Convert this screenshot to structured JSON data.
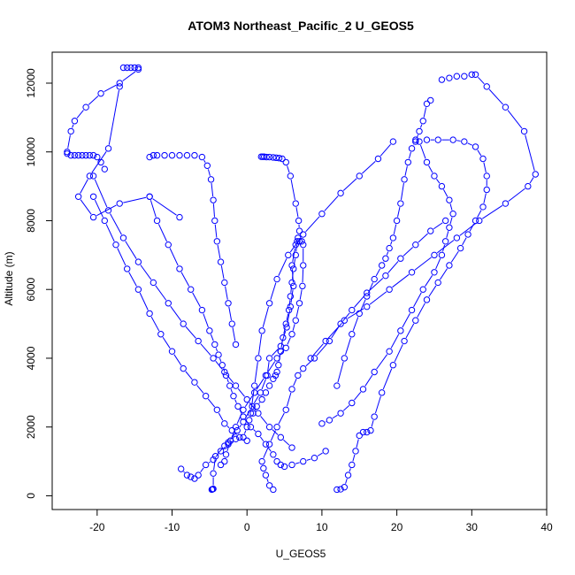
{
  "chart_data": {
    "type": "scatter",
    "title": "ATOM3 Northeast_Pacific_2 U_GEOS5",
    "xlabel": "U_GEOS5",
    "ylabel": "Altitude (m)",
    "xlim": [
      -26,
      40
    ],
    "ylim": [
      -400,
      12900
    ],
    "x_ticks": [
      -20,
      -10,
      0,
      10,
      20,
      30,
      40
    ],
    "y_ticks": [
      0,
      2000,
      4000,
      6000,
      8000,
      10000,
      12000
    ],
    "x_tick_labels": [
      "-20",
      "-10",
      "0",
      "10",
      "20",
      "30",
      "40"
    ],
    "y_tick_labels": [
      "0",
      "2000",
      "4000",
      "6000",
      "8000",
      "10000",
      "12000"
    ],
    "grid": false,
    "legend": "none",
    "series_color": "#0000ff",
    "series": [
      {
        "x": [
          -4.7,
          -4.6,
          -4.5,
          -4.5,
          -4.2,
          -3.0,
          -2.5,
          -1.3,
          -0.5,
          0.7,
          1.8,
          2.7,
          3.0,
          4.5,
          5.3,
          5.8,
          6.2,
          6.0,
          6.5,
          6.8,
          7.0,
          6.9,
          6.5,
          5.8,
          5.2,
          4.7,
          4.3,
          3.9,
          3.5,
          3.0,
          2.6,
          2.3,
          2.1,
          1.9
        ],
        "y": [
          180,
          190,
          200,
          650,
          1150,
          1450,
          1550,
          1900,
          2150,
          2600,
          3000,
          3500,
          4000,
          4350,
          4900,
          5500,
          6100,
          6700,
          7300,
          7500,
          7700,
          8000,
          8500,
          9300,
          9700,
          9800,
          9820,
          9830,
          9840,
          9850,
          9850,
          9860,
          9860,
          9860
        ]
      },
      {
        "x": [
          3.5,
          3.0,
          2.5,
          2.2,
          2.0,
          3.0,
          4.0,
          5.2,
          6.0,
          6.8,
          7.5,
          9.0,
          11.0,
          12.5,
          14.0,
          16.0,
          18.5,
          20.5,
          22.5,
          24.5,
          26.5
        ],
        "y": [
          180,
          300,
          600,
          800,
          1000,
          1500,
          2000,
          2500,
          3100,
          3500,
          3700,
          4000,
          4500,
          5000,
          5400,
          5900,
          6400,
          6900,
          7300,
          7700,
          8000
        ]
      },
      {
        "x": [
          12.0,
          12.5,
          13.0,
          13.5,
          14.0,
          14.5,
          15.0,
          15.5,
          16.0,
          16.5,
          17.0,
          18.0,
          19.5,
          21.0,
          22.5,
          24.0,
          25.5,
          27.0,
          28.5,
          29.5,
          30.5,
          31.5,
          32.0,
          32.0,
          31.5,
          30.5,
          29.0,
          27.5,
          25.5,
          24.0
        ],
        "y": [
          180,
          190,
          250,
          600,
          900,
          1300,
          1750,
          1850,
          1850,
          1900,
          2300,
          3000,
          3800,
          4500,
          5100,
          5700,
          6200,
          6700,
          7200,
          7600,
          8000,
          8400,
          8900,
          9300,
          9800,
          10150,
          10300,
          10350,
          10350,
          10350
        ]
      },
      {
        "x": [
          -8.8,
          -8.0,
          -7.5,
          -7.0,
          -6.5,
          -5.5,
          -4.5,
          -3.5,
          -2.5,
          -1.5,
          -0.5,
          0.0,
          0.3,
          0.8,
          1.3,
          2.0,
          2.5,
          3.0,
          3.5,
          3.8,
          4.0,
          4.2,
          4.5
        ],
        "y": [
          780,
          600,
          550,
          500,
          600,
          900,
          1050,
          1300,
          1500,
          1650,
          1700,
          2000,
          2200,
          2400,
          2600,
          2800,
          3000,
          3200,
          3400,
          3500,
          3600,
          3800,
          4200
        ]
      },
      {
        "x": [
          4.5,
          4.8,
          5.2,
          5.6,
          5.8,
          6.0,
          6.2,
          6.5,
          6.7,
          7.0,
          7.3,
          7.5,
          7.5,
          7.4,
          7.0,
          6.5,
          6.0,
          5.2,
          4.0,
          2.5,
          1.0,
          -0.5,
          -1.5,
          -2.2,
          -2.8,
          -3.0,
          -3.5
        ],
        "y": [
          4200,
          4600,
          5000,
          5400,
          5800,
          6200,
          6600,
          7000,
          7400,
          7400,
          7400,
          7300,
          6700,
          6100,
          5600,
          5100,
          4700,
          4300,
          4000,
          3500,
          3000,
          2500,
          2000,
          1600,
          1200,
          1000,
          900
        ]
      },
      {
        "x": [
          -13.0,
          -12.0,
          -10.5,
          -9.0,
          -7.5,
          -6.0,
          -5.0,
          -4.3,
          -3.8,
          -3.3,
          -2.8,
          -2.3,
          -1.8,
          -1.2,
          -0.5,
          0.5,
          1.5,
          2.5,
          3.5,
          4.0,
          4.5,
          5.0,
          6.0,
          7.5,
          9.0,
          10.5
        ],
        "y": [
          8700,
          8000,
          7300,
          6600,
          6000,
          5400,
          4800,
          4400,
          4100,
          3800,
          3500,
          3200,
          2900,
          2600,
          2300,
          2000,
          1800,
          1500,
          1200,
          1000,
          900,
          850,
          900,
          1000,
          1100,
          1300
        ]
      },
      {
        "x": [
          -20.5,
          -19.0,
          -17.5,
          -16.0,
          -14.5,
          -13.0,
          -11.5,
          -10.0,
          -8.5,
          -7.0,
          -5.5,
          -4.0,
          -3.0,
          -2.0,
          -1.0,
          0.0
        ],
        "y": [
          8700,
          8000,
          7300,
          6600,
          6000,
          5300,
          4700,
          4200,
          3700,
          3300,
          2900,
          2500,
          2100,
          1900,
          1700,
          1600
        ]
      },
      {
        "x": [
          -24.0,
          -23.5,
          -23.0,
          -22.5,
          -22.0,
          -21.5,
          -21.0,
          -20.5,
          -20.0,
          -19.5,
          -19.0
        ],
        "y": [
          9950,
          9900,
          9900,
          9900,
          9900,
          9900,
          9900,
          9900,
          9850,
          9700,
          9500
        ]
      },
      {
        "x": [
          -20.5,
          -18.5,
          -16.5,
          -14.5,
          -12.5,
          -10.5,
          -8.5,
          -6.5,
          -4.5,
          -3.0,
          -1.5,
          0.0,
          1.5,
          3.0,
          4.5,
          6.0
        ],
        "y": [
          9300,
          8300,
          7500,
          6800,
          6200,
          5600,
          5000,
          4500,
          4000,
          3600,
          3200,
          2800,
          2400,
          2000,
          1700,
          1400
        ]
      },
      {
        "x": [
          -13.0,
          -12.5,
          -12.0,
          -11.0,
          -10.0,
          -9.0,
          -8.0,
          -7.0,
          -6.0,
          -5.3,
          -4.8,
          -4.5,
          -4.3,
          -4.0,
          -3.5,
          -3.0,
          -2.5,
          -2.0,
          -1.5
        ],
        "y": [
          9850,
          9900,
          9900,
          9900,
          9900,
          9900,
          9900,
          9900,
          9850,
          9600,
          9200,
          8600,
          8000,
          7400,
          6800,
          6200,
          5600,
          5000,
          4400
        ]
      },
      {
        "x": [
          -16.5,
          -16.0,
          -15.5,
          -15.0,
          -14.5,
          -14.5,
          -17.0,
          -19.5,
          -21.5,
          -23.0,
          -23.5,
          -24.0
        ],
        "y": [
          12450,
          12450,
          12450,
          12450,
          12450,
          12400,
          12000,
          11700,
          11300,
          10900,
          10600,
          10000
        ]
      },
      {
        "x": [
          -17.0,
          -18.5,
          -21.0,
          -22.5,
          -20.5,
          -17.0,
          -13.0,
          -9.0
        ],
        "y": [
          11900,
          10100,
          9300,
          8700,
          8100,
          8500,
          8700,
          8100
        ]
      },
      {
        "x": [
          26.0,
          27.0,
          28.0,
          29.0,
          30.0,
          30.5,
          32.0,
          34.5,
          37.0,
          38.5,
          37.5,
          34.5,
          31.0,
          28.0,
          25.0,
          22.0,
          19.0,
          16.0,
          13.0,
          10.5,
          8.5
        ],
        "y": [
          12100,
          12150,
          12200,
          12200,
          12250,
          12250,
          11900,
          11300,
          10600,
          9350,
          9000,
          8500,
          8000,
          7500,
          7000,
          6500,
          6000,
          5500,
          5100,
          4500,
          4000
        ]
      },
      {
        "x": [
          24.5,
          24.0,
          23.5,
          23.0,
          22.5,
          22.0,
          21.5,
          21.0,
          20.5,
          20.0,
          19.5,
          19.0,
          18.5,
          18.0,
          17.0,
          16.0,
          15.0,
          14.0,
          13.0,
          12.0
        ],
        "y": [
          11500,
          11400,
          10900,
          10600,
          10300,
          10100,
          9700,
          9200,
          8500,
          8000,
          7500,
          7200,
          6900,
          6700,
          6300,
          5800,
          5300,
          4700,
          4000,
          3200
        ]
      },
      {
        "x": [
          19.5,
          17.5,
          15.0,
          12.5,
          10.0,
          7.5,
          5.5,
          4.0,
          3.0,
          2.0,
          1.5,
          1.0,
          0.5
        ],
        "y": [
          10300,
          9800,
          9300,
          8800,
          8200,
          7600,
          7000,
          6300,
          5600,
          4800,
          4000,
          3200,
          2400
        ]
      },
      {
        "x": [
          22.5,
          23.0,
          24.0,
          25.0,
          26.0,
          27.0,
          27.5,
          27.0,
          26.5,
          26.0,
          25.0,
          23.5,
          22.0,
          20.5,
          19.0,
          17.0,
          15.5,
          14.0,
          12.5,
          11.0,
          10.0
        ],
        "y": [
          10350,
          10300,
          9700,
          9300,
          9000,
          8600,
          8200,
          7800,
          7400,
          7000,
          6500,
          6000,
          5400,
          4800,
          4200,
          3600,
          3100,
          2700,
          2400,
          2200,
          2100
        ]
      }
    ]
  }
}
